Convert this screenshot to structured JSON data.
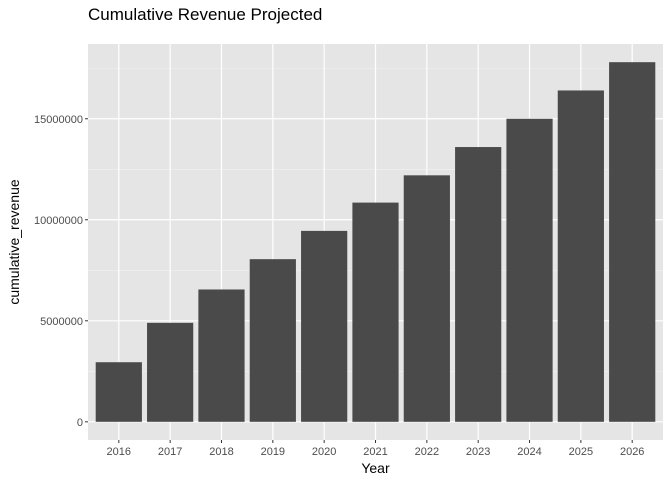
{
  "chart_data": {
    "type": "bar",
    "title": "Cumulative Revenue Projected",
    "xlabel": "Year",
    "ylabel": "cumulative_revenue",
    "categories": [
      "2016",
      "2017",
      "2018",
      "2019",
      "2020",
      "2021",
      "2022",
      "2023",
      "2024",
      "2025",
      "2026"
    ],
    "values": [
      2950000,
      4900000,
      6550000,
      8050000,
      9450000,
      10850000,
      12200000,
      13600000,
      15000000,
      16400000,
      17800000
    ],
    "ylim": [
      -900000,
      18700000
    ],
    "yticks": [
      0,
      5000000,
      10000000,
      15000000
    ],
    "ytick_labels": [
      "0",
      "5000000",
      "10000000",
      "15000000"
    ],
    "grid": true,
    "legend": "none",
    "colors": {
      "bar": "#4a4a4a",
      "panel": "#e5e5e5",
      "grid_major": "#ffffff",
      "grid_minor": "#f2f2f2"
    }
  }
}
